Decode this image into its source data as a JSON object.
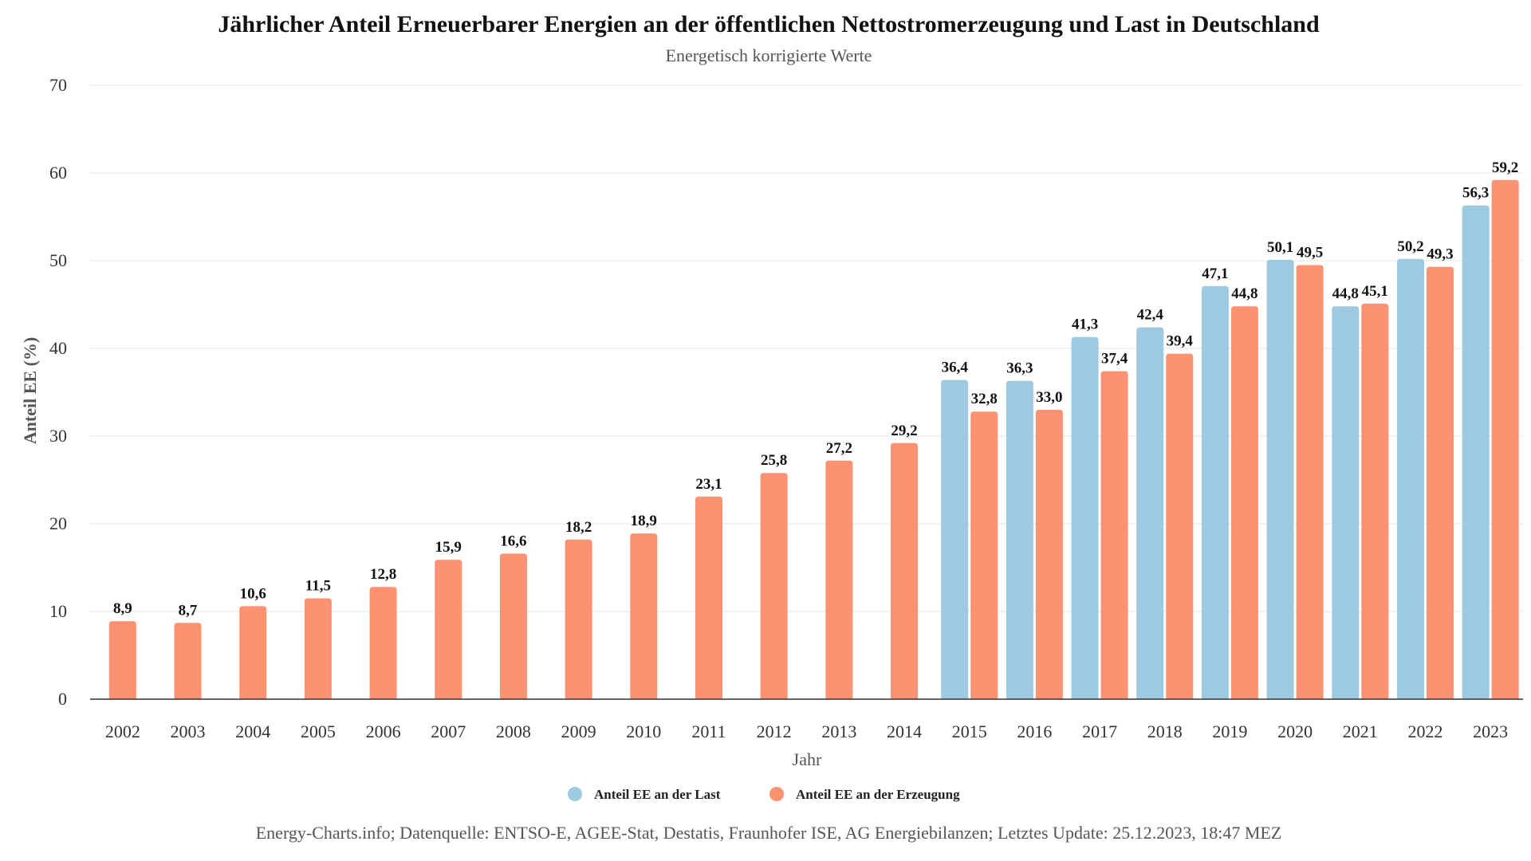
{
  "chart_data": {
    "type": "bar",
    "title": "Jährlicher Anteil Erneuerbarer Energien an der öffentlichen Nettostromerzeugung und Last in Deutschland",
    "subtitle": "Energetisch korrigierte Werte",
    "xlabel": "Jahr",
    "ylabel": "Anteil EE (%)",
    "ylim": [
      0,
      70
    ],
    "yticks": [
      0,
      10,
      20,
      30,
      40,
      50,
      60,
      70
    ],
    "grid": true,
    "legend_position": "bottom",
    "categories": [
      "2002",
      "2003",
      "2004",
      "2005",
      "2006",
      "2007",
      "2008",
      "2009",
      "2010",
      "2011",
      "2012",
      "2013",
      "2014",
      "2015",
      "2016",
      "2017",
      "2018",
      "2019",
      "2020",
      "2021",
      "2022",
      "2023"
    ],
    "series": [
      {
        "name": "Anteil EE an der Last",
        "color": "#9ecae1",
        "values": [
          null,
          null,
          null,
          null,
          null,
          null,
          null,
          null,
          null,
          null,
          null,
          null,
          null,
          36.4,
          36.3,
          41.3,
          42.4,
          47.1,
          50.1,
          44.8,
          50.2,
          56.3
        ],
        "labels": [
          "",
          "",
          "",
          "",
          "",
          "",
          "",
          "",
          "",
          "",
          "",
          "",
          "",
          "36,4",
          "36,3",
          "41,3",
          "42,4",
          "47,1",
          "50,1",
          "44,8",
          "50,2",
          "56,3"
        ]
      },
      {
        "name": "Anteil EE an der Erzeugung",
        "color": "#fc9272",
        "values": [
          8.9,
          8.7,
          10.6,
          11.5,
          12.8,
          15.9,
          16.6,
          18.2,
          18.9,
          23.1,
          25.8,
          27.2,
          29.2,
          32.8,
          33.0,
          37.4,
          39.4,
          44.8,
          49.5,
          45.1,
          49.3,
          59.2
        ],
        "labels": [
          "8,9",
          "8,7",
          "10,6",
          "11,5",
          "12,8",
          "15,9",
          "16,6",
          "18,2",
          "18,9",
          "23,1",
          "25,8",
          "27,2",
          "29,2",
          "32,8",
          "33,0",
          "37,4",
          "39,4",
          "44,8",
          "49,5",
          "45,1",
          "49,3",
          "59,2"
        ]
      }
    ]
  },
  "source": "Energy-Charts.info; Datenquelle: ENTSO-E, AGEE-Stat, Destatis, Fraunhofer ISE, AG Energiebilanzen; Letztes Update: 25.12.2023, 18:47 MEZ"
}
